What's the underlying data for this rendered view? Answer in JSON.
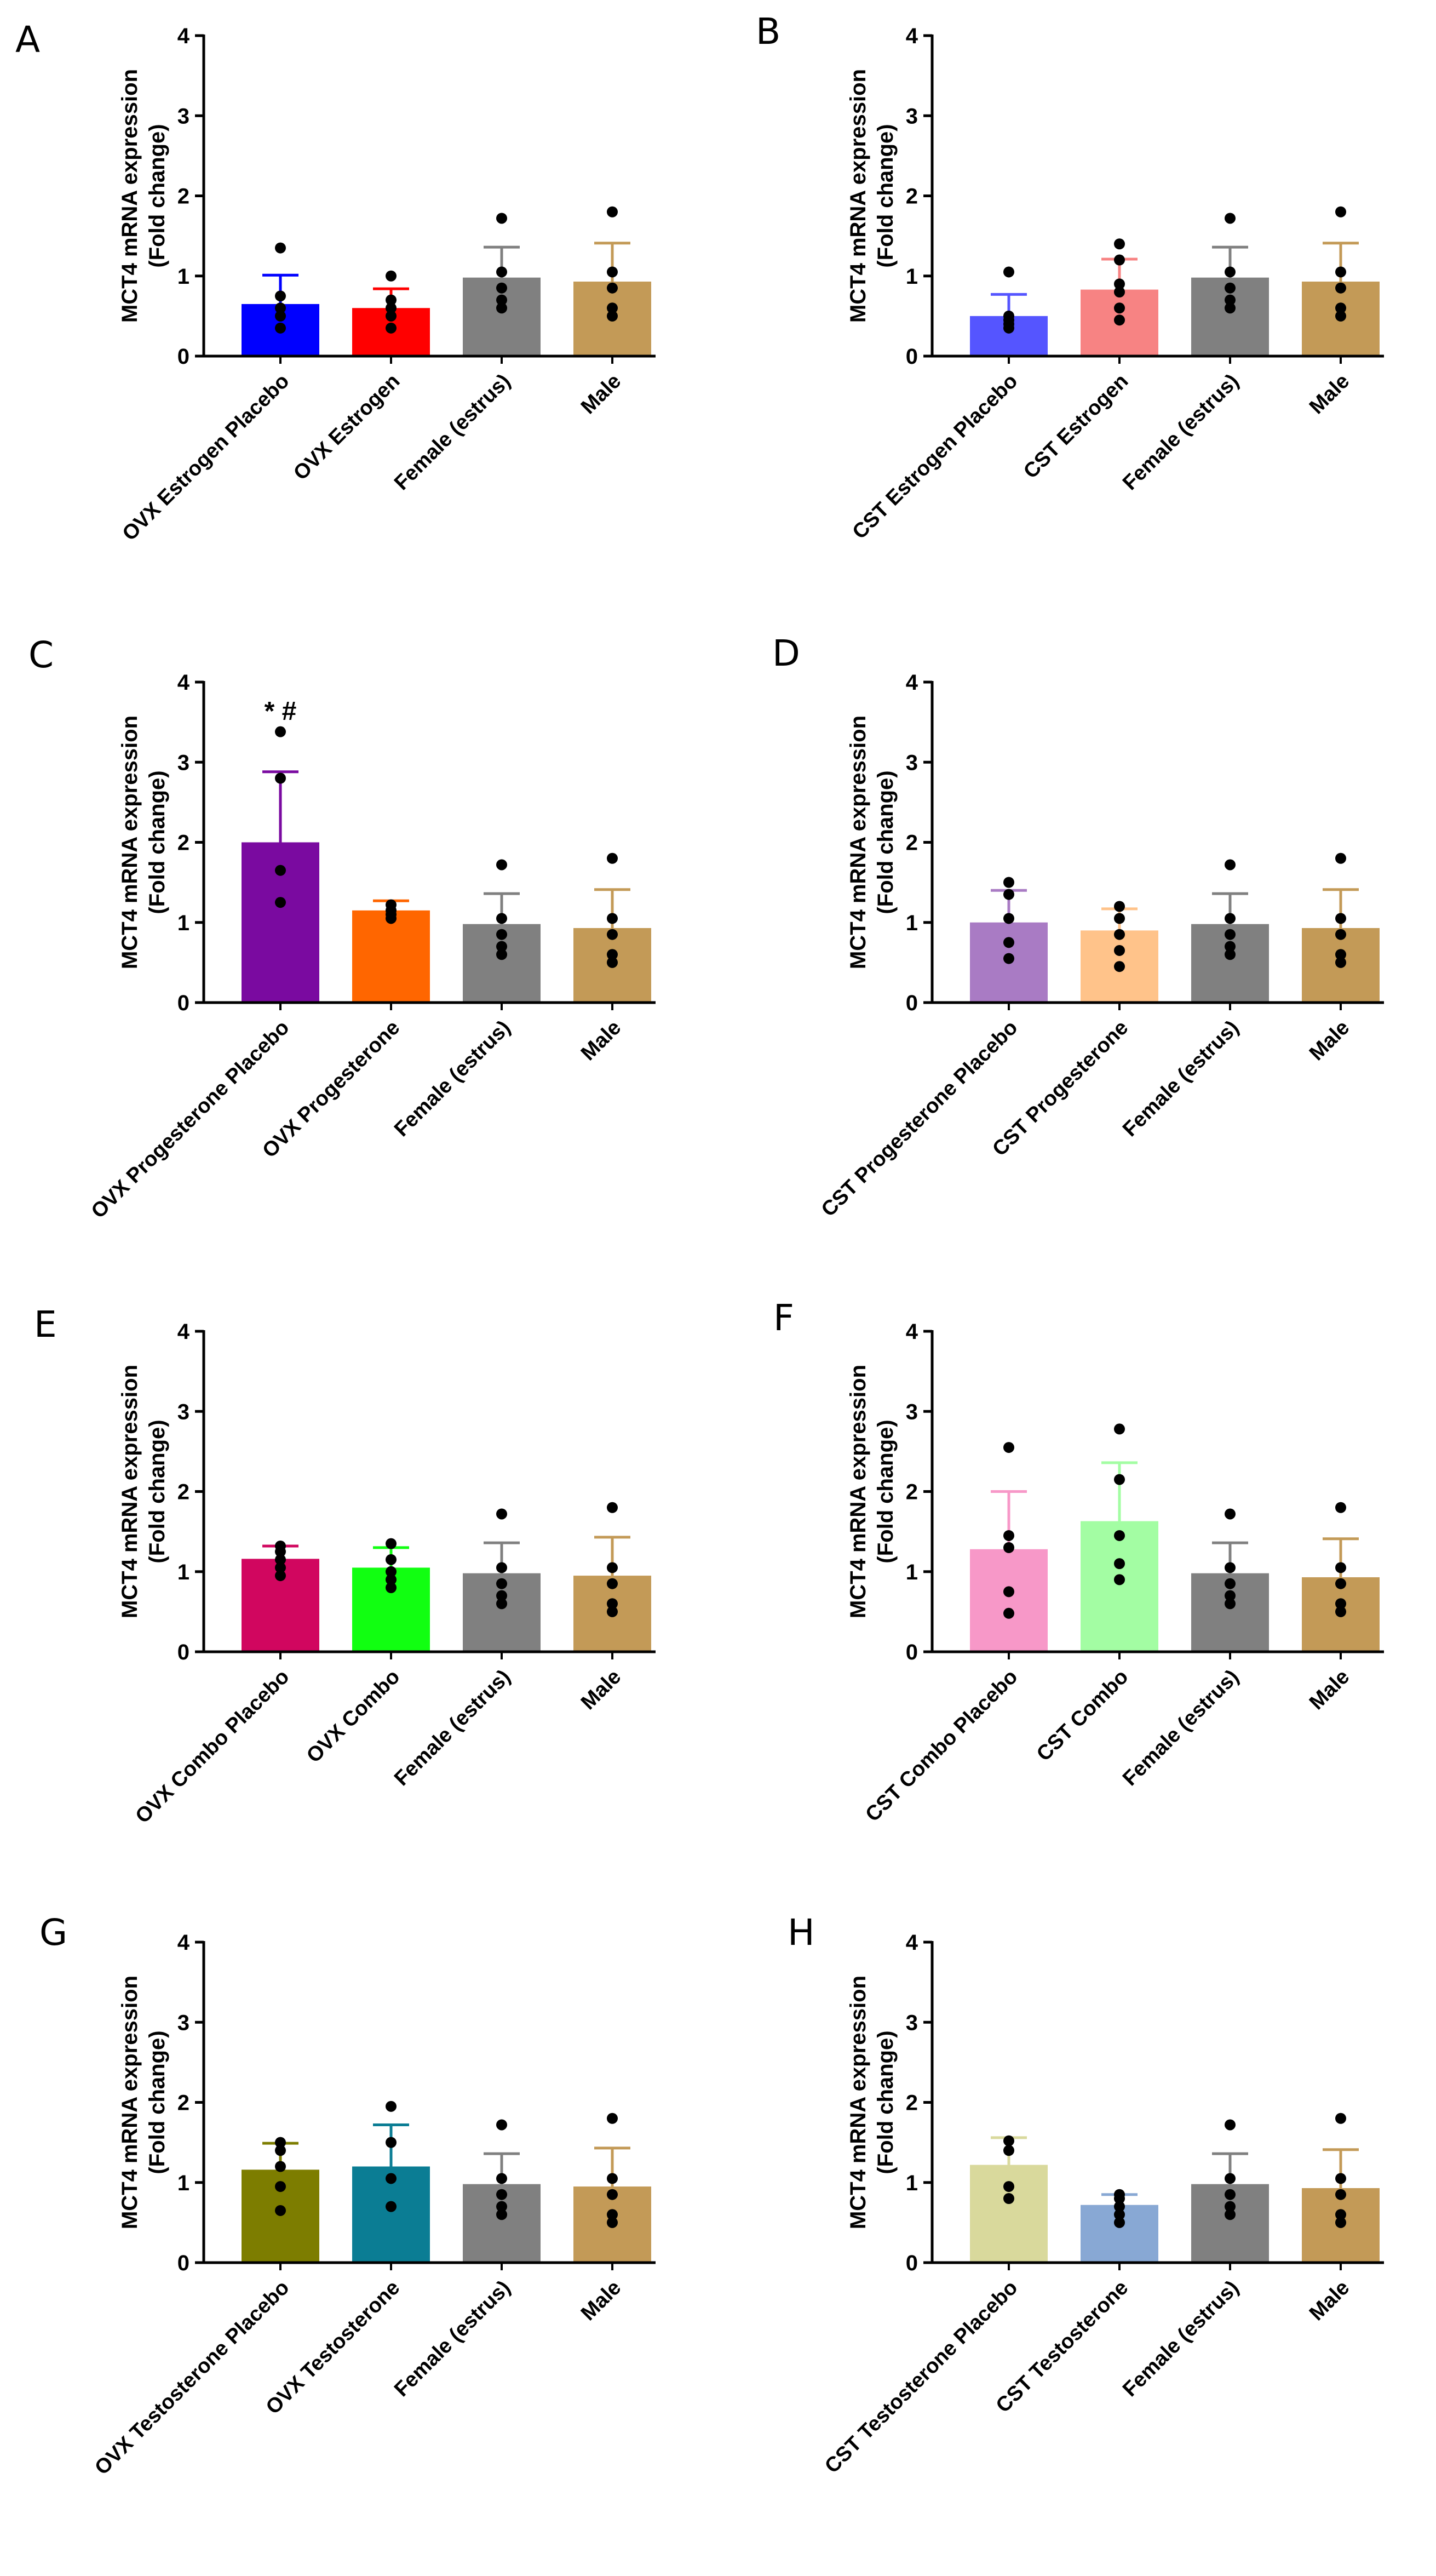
{
  "chart_data": [
    {
      "panel": "A",
      "type": "bar",
      "ylabel": "MCT4 mRNA expression",
      "ylabel2": "(Fold change)",
      "ylim": [
        0,
        4
      ],
      "yticks": [
        0,
        1,
        2,
        3,
        4
      ],
      "categories": [
        "OVX Estrogen Placebo",
        "OVX Estrogen",
        "Female (estrus)",
        "Male"
      ],
      "values": [
        0.65,
        0.6,
        0.98,
        0.93
      ],
      "errors": [
        0.36,
        0.24,
        0.38,
        0.48
      ],
      "colors": [
        "#0000FF",
        "#FF0000",
        "#808080",
        "#C39A57"
      ],
      "points": [
        [
          0.35,
          0.5,
          0.6,
          0.75,
          1.35
        ],
        [
          0.35,
          0.5,
          0.6,
          0.7,
          1.0
        ],
        [
          0.6,
          0.7,
          0.85,
          1.05,
          1.72
        ],
        [
          0.5,
          0.6,
          0.85,
          1.05,
          1.8
        ]
      ],
      "annotation": ""
    },
    {
      "panel": "B",
      "type": "bar",
      "ylabel": "MCT4 mRNA expression",
      "ylabel2": "(Fold change)",
      "ylim": [
        0,
        4
      ],
      "yticks": [
        0,
        1,
        2,
        3,
        4
      ],
      "categories": [
        "CST Estrogen Placebo",
        "CST Estrogen",
        "Female (estrus)",
        "Male"
      ],
      "values": [
        0.5,
        0.83,
        0.98,
        0.93
      ],
      "errors": [
        0.27,
        0.38,
        0.38,
        0.48
      ],
      "colors": [
        "#5555FF",
        "#F78383",
        "#808080",
        "#C39A57"
      ],
      "points": [
        [
          0.35,
          0.4,
          0.45,
          0.5,
          1.05
        ],
        [
          0.45,
          0.6,
          0.8,
          0.9,
          1.2,
          1.4
        ],
        [
          0.6,
          0.7,
          0.85,
          1.05,
          1.72
        ],
        [
          0.5,
          0.6,
          0.85,
          1.05,
          1.8
        ]
      ],
      "annotation": ""
    },
    {
      "panel": "C",
      "type": "bar",
      "ylabel": "MCT4 mRNA expression",
      "ylabel2": "(Fold change)",
      "ylim": [
        0,
        4
      ],
      "yticks": [
        0,
        1,
        2,
        3,
        4
      ],
      "categories": [
        "OVX Progesterone Placebo",
        "OVX Progesterone",
        "Female (estrus)",
        "Male"
      ],
      "values": [
        2.0,
        1.15,
        0.98,
        0.93
      ],
      "errors": [
        0.88,
        0.12,
        0.38,
        0.48
      ],
      "colors": [
        "#7A0AA0",
        "#FF6600",
        "#808080",
        "#C39A57"
      ],
      "points": [
        [
          1.25,
          1.65,
          2.8,
          3.38
        ],
        [
          1.05,
          1.1,
          1.15,
          1.22
        ],
        [
          0.6,
          0.7,
          0.85,
          1.05,
          1.72
        ],
        [
          0.5,
          0.6,
          0.85,
          1.05,
          1.8
        ]
      ],
      "annotation": "* #"
    },
    {
      "panel": "D",
      "type": "bar",
      "ylabel": "MCT4 mRNA expression",
      "ylabel2": "(Fold change)",
      "ylim": [
        0,
        4
      ],
      "yticks": [
        0,
        1,
        2,
        3,
        4
      ],
      "categories": [
        "CST Progesterone Placebo",
        "CST Progesterone",
        "Female (estrus)",
        "Male"
      ],
      "values": [
        1.0,
        0.9,
        0.98,
        0.93
      ],
      "errors": [
        0.4,
        0.27,
        0.38,
        0.48
      ],
      "colors": [
        "#A97BC4",
        "#FFC38A",
        "#808080",
        "#C39A57"
      ],
      "points": [
        [
          0.55,
          0.75,
          1.05,
          1.35,
          1.5
        ],
        [
          0.45,
          0.65,
          0.85,
          1.05,
          1.2
        ],
        [
          0.6,
          0.7,
          0.85,
          1.05,
          1.72
        ],
        [
          0.5,
          0.6,
          0.85,
          1.05,
          1.8
        ]
      ],
      "annotation": ""
    },
    {
      "panel": "E",
      "type": "bar",
      "ylabel": "MCT4 mRNA expression",
      "ylabel2": "(Fold change)",
      "ylim": [
        0,
        4
      ],
      "yticks": [
        0,
        1,
        2,
        3,
        4
      ],
      "categories": [
        "OVX Combo Placebo",
        "OVX Combo",
        "Female (estrus)",
        "Male"
      ],
      "values": [
        1.16,
        1.05,
        0.98,
        0.95
      ],
      "errors": [
        0.16,
        0.25,
        0.38,
        0.48
      ],
      "colors": [
        "#D1065F",
        "#11FF11",
        "#808080",
        "#C39A57"
      ],
      "points": [
        [
          0.95,
          1.05,
          1.15,
          1.25,
          1.32
        ],
        [
          0.8,
          0.9,
          1.0,
          1.15,
          1.35
        ],
        [
          0.6,
          0.7,
          0.85,
          1.05,
          1.72
        ],
        [
          0.5,
          0.6,
          0.85,
          1.05,
          1.8
        ]
      ],
      "annotation": ""
    },
    {
      "panel": "F",
      "type": "bar",
      "ylabel": "MCT4 mRNA expression",
      "ylabel2": "(Fold change)",
      "ylim": [
        0,
        4
      ],
      "yticks": [
        0,
        1,
        2,
        3,
        4
      ],
      "categories": [
        "CST Combo Placebo",
        "CST Combo",
        "Female (estrus)",
        "Male"
      ],
      "values": [
        1.28,
        1.63,
        0.98,
        0.93
      ],
      "errors": [
        0.72,
        0.73,
        0.38,
        0.48
      ],
      "colors": [
        "#F798C8",
        "#A3FDA3",
        "#808080",
        "#C39A57"
      ],
      "points": [
        [
          0.48,
          0.75,
          1.3,
          1.45,
          2.55
        ],
        [
          0.9,
          1.1,
          1.45,
          2.15,
          2.78
        ],
        [
          0.6,
          0.7,
          0.85,
          1.05,
          1.72
        ],
        [
          0.5,
          0.6,
          0.85,
          1.05,
          1.8
        ]
      ],
      "annotation": ""
    },
    {
      "panel": "G",
      "type": "bar",
      "ylabel": "MCT4 mRNA expression",
      "ylabel2": "(Fold change)",
      "ylim": [
        0,
        4
      ],
      "yticks": [
        0,
        1,
        2,
        3,
        4
      ],
      "categories": [
        "OVX Testosterone Placebo",
        "OVX Testosterone",
        "Female (estrus)",
        "Male"
      ],
      "values": [
        1.16,
        1.2,
        0.98,
        0.95
      ],
      "errors": [
        0.33,
        0.52,
        0.38,
        0.48
      ],
      "colors": [
        "#7D7D00",
        "#0B7D94",
        "#808080",
        "#C39A57"
      ],
      "points": [
        [
          0.65,
          0.95,
          1.2,
          1.4,
          1.5
        ],
        [
          0.7,
          1.05,
          1.5,
          1.95
        ],
        [
          0.6,
          0.7,
          0.85,
          1.05,
          1.72
        ],
        [
          0.5,
          0.6,
          0.85,
          1.05,
          1.8
        ]
      ],
      "annotation": ""
    },
    {
      "panel": "H",
      "type": "bar",
      "ylabel": "MCT4 mRNA expression",
      "ylabel2": "(Fold change)",
      "ylim": [
        0,
        4
      ],
      "yticks": [
        0,
        1,
        2,
        3,
        4
      ],
      "categories": [
        "CST Testosterone Placebo",
        "CST Testosterone",
        "Female (estrus)",
        "Male"
      ],
      "values": [
        1.22,
        0.72,
        0.98,
        0.93
      ],
      "errors": [
        0.34,
        0.13,
        0.38,
        0.48
      ],
      "colors": [
        "#D9D99C",
        "#88A8D4",
        "#808080",
        "#C39A57"
      ],
      "points": [
        [
          0.8,
          0.95,
          1.4,
          1.52
        ],
        [
          0.5,
          0.6,
          0.7,
          0.8,
          0.85
        ],
        [
          0.6,
          0.7,
          0.85,
          1.05,
          1.72
        ],
        [
          0.5,
          0.6,
          0.85,
          1.05,
          1.8
        ]
      ],
      "annotation": ""
    }
  ]
}
